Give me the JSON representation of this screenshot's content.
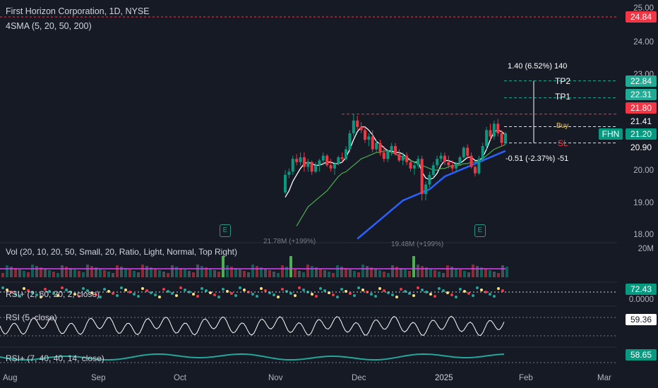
{
  "header": {
    "title": "First Horizon Corporation, 1D, NYSE",
    "indicator": "4SMA (5, 20, 50, 200)"
  },
  "price_axis": [
    {
      "value": 25.0,
      "label": "25.00"
    },
    {
      "value": 24.0,
      "label": "24.00"
    },
    {
      "value": 23.0,
      "label": "23.00"
    },
    {
      "value": 20.0,
      "label": "20.00"
    },
    {
      "value": 19.0,
      "label": "19.00"
    },
    {
      "value": 18.0,
      "label": "18.00"
    }
  ],
  "price_tags": [
    {
      "value": 24.84,
      "label": "24.84",
      "color": "#f23645"
    },
    {
      "value": 22.84,
      "label": "22.84",
      "color": "#22ab94"
    },
    {
      "value": 22.31,
      "label": "22.31",
      "color": "#22ab94"
    },
    {
      "value": 21.8,
      "label": "21.80",
      "color": "#f23645"
    },
    {
      "value": 21.41,
      "label": "21.41",
      "color": "#161a25"
    },
    {
      "value": 21.2,
      "label": "21.20",
      "color": "#089981"
    },
    {
      "value": 20.9,
      "label": "20.90",
      "color": "#161a25"
    }
  ],
  "symbol_tag": "FHN",
  "levels": {
    "tp2": "TP2",
    "tp1": "TP1",
    "buy": "Buy",
    "sl": "SL",
    "upside": "1.40 (6.52%) 140",
    "downside": "-0.51 (-2.37%) -51"
  },
  "volume_labels": {
    "nov": "21.78M (+199%)",
    "dec": "19.48M (+199%)"
  },
  "earnings_marker": "E",
  "panes": {
    "vol": {
      "title": "Vol (20, 10, 20, 50, Small, 20, Ratio, Light, Normal, Top Right)",
      "axis": "20M",
      "axis2": "0.0000"
    },
    "rsi1": {
      "title": "RSI+ (2, 60, 20, 2, close)",
      "value": "72.43"
    },
    "rsi2": {
      "title": "RSI (5, close)",
      "value": "59.36"
    },
    "rsi3": {
      "title": "RSI+ (7, 40, 40, 14, close)",
      "value": "58.65"
    }
  },
  "time_axis": [
    "Aug",
    "Sep",
    "Oct",
    "Nov",
    "Dec",
    "2025",
    "Feb",
    "Mar"
  ],
  "colors": {
    "up": "#089981",
    "down": "#f23645",
    "sma5": "#ffffff",
    "sma20": "#4caf50",
    "sma50": "#2962ff",
    "bg": "#161a25"
  },
  "chart_data": {
    "type": "candlestick",
    "title": "First Horizon Corporation, 1D, NYSE",
    "ylim": [
      17.85,
      25.25
    ],
    "candles_ohlc": [
      [
        19.35,
        20.05,
        19.3,
        19.9
      ],
      [
        19.9,
        20.1,
        19.8,
        20.0
      ],
      [
        20.0,
        20.5,
        19.9,
        20.4
      ],
      [
        20.4,
        20.55,
        20.2,
        20.3
      ],
      [
        20.3,
        20.6,
        20.2,
        20.45
      ],
      [
        20.45,
        20.6,
        20.0,
        20.15
      ],
      [
        20.15,
        20.4,
        20.0,
        20.3
      ],
      [
        20.3,
        20.35,
        19.9,
        20.0
      ],
      [
        20.0,
        20.3,
        19.95,
        20.2
      ],
      [
        20.2,
        20.4,
        20.0,
        20.35
      ],
      [
        20.35,
        20.6,
        20.2,
        20.5
      ],
      [
        20.5,
        20.55,
        20.15,
        20.2
      ],
      [
        20.2,
        20.4,
        20.0,
        20.1
      ],
      [
        20.1,
        20.3,
        19.9,
        20.25
      ],
      [
        20.25,
        20.5,
        20.2,
        20.45
      ],
      [
        20.45,
        20.6,
        20.3,
        20.4
      ],
      [
        20.4,
        20.8,
        20.35,
        20.7
      ],
      [
        20.7,
        21.3,
        20.6,
        21.2
      ],
      [
        21.2,
        21.8,
        21.1,
        21.6
      ],
      [
        21.6,
        21.75,
        21.3,
        21.4
      ],
      [
        21.4,
        21.55,
        21.2,
        21.3
      ],
      [
        21.3,
        21.4,
        20.9,
        21.0
      ],
      [
        21.0,
        21.2,
        20.8,
        21.1
      ],
      [
        21.1,
        21.3,
        20.6,
        20.7
      ],
      [
        20.7,
        21.0,
        20.6,
        20.9
      ],
      [
        20.9,
        21.0,
        20.5,
        20.6
      ],
      [
        20.6,
        20.8,
        20.3,
        20.4
      ],
      [
        20.4,
        20.7,
        20.3,
        20.65
      ],
      [
        20.65,
        20.9,
        20.5,
        20.8
      ],
      [
        20.8,
        20.9,
        20.5,
        20.55
      ],
      [
        20.55,
        20.7,
        20.3,
        20.35
      ],
      [
        20.35,
        20.6,
        20.2,
        20.5
      ],
      [
        20.5,
        20.6,
        20.2,
        20.3
      ],
      [
        20.3,
        20.4,
        20.0,
        20.1
      ],
      [
        20.1,
        20.3,
        19.9,
        20.2
      ],
      [
        20.2,
        20.5,
        20.1,
        20.4
      ],
      [
        20.4,
        20.5,
        19.1,
        19.3
      ],
      [
        19.3,
        19.7,
        19.1,
        19.6
      ],
      [
        19.6,
        20.0,
        19.5,
        19.9
      ],
      [
        19.9,
        20.3,
        19.8,
        20.2
      ],
      [
        20.2,
        20.5,
        20.1,
        20.4
      ],
      [
        20.4,
        20.6,
        20.3,
        20.5
      ],
      [
        20.5,
        20.6,
        20.2,
        20.3
      ],
      [
        20.3,
        20.5,
        20.1,
        20.2
      ],
      [
        20.2,
        20.35,
        20.0,
        20.1
      ],
      [
        20.1,
        20.3,
        20.0,
        20.25
      ],
      [
        20.25,
        20.5,
        20.2,
        20.45
      ],
      [
        20.45,
        20.8,
        20.4,
        20.75
      ],
      [
        20.75,
        20.85,
        20.4,
        20.5
      ],
      [
        20.5,
        20.6,
        20.1,
        20.15
      ],
      [
        20.15,
        20.2,
        19.85,
        19.95
      ],
      [
        19.95,
        20.5,
        19.9,
        20.4
      ],
      [
        20.4,
        20.9,
        20.3,
        20.8
      ],
      [
        20.8,
        21.4,
        20.7,
        21.3
      ],
      [
        21.3,
        21.5,
        21.0,
        21.1
      ],
      [
        21.1,
        21.6,
        21.0,
        21.5
      ],
      [
        21.5,
        21.65,
        21.1,
        21.2
      ],
      [
        21.2,
        21.3,
        20.8,
        20.9
      ],
      [
        20.9,
        21.25,
        20.85,
        21.2
      ]
    ],
    "series": [
      {
        "name": "SMA 5",
        "values": [
          19.2,
          19.4,
          19.7,
          19.9,
          20.1,
          20.25,
          20.3,
          20.25,
          20.2,
          20.2,
          20.25,
          20.3,
          20.3,
          20.25,
          20.25,
          20.3,
          20.45,
          20.7,
          21.0,
          21.25,
          21.4,
          21.4,
          21.3,
          21.15,
          20.95,
          20.85,
          20.75,
          20.65,
          20.65,
          20.6,
          20.6,
          20.55,
          20.45,
          20.35,
          20.3,
          20.3,
          20.0,
          19.8,
          19.75,
          19.8,
          19.95,
          20.2,
          20.35,
          20.35,
          20.3,
          20.25,
          20.25,
          20.35,
          20.45,
          20.45,
          20.35,
          20.35,
          20.45,
          20.7,
          21.0,
          21.25,
          21.3,
          21.25,
          21.15
        ]
      },
      {
        "name": "SMA 20",
        "values": [
          null,
          null,
          null,
          18.3,
          18.5,
          18.7,
          18.9,
          19.0,
          19.1,
          19.2,
          19.3,
          19.4,
          19.55,
          19.7,
          19.85,
          19.95,
          20.0,
          20.1,
          20.2,
          20.3,
          20.4,
          20.45,
          20.5,
          20.55,
          20.6,
          20.6,
          20.65,
          20.65,
          20.6,
          20.55,
          20.5,
          20.45,
          20.4,
          20.35,
          20.3,
          20.25,
          20.2,
          20.15,
          20.1,
          20.05,
          20.05,
          20.1,
          20.1,
          20.15,
          20.2,
          20.2,
          20.2,
          20.25,
          20.25,
          20.3,
          20.3,
          20.35,
          20.4,
          20.5,
          20.6,
          20.7,
          20.75,
          20.8,
          20.85
        ]
      },
      {
        "name": "SMA 50",
        "values": [
          null,
          null,
          null,
          null,
          null,
          null,
          null,
          null,
          null,
          null,
          null,
          null,
          null,
          null,
          null,
          null,
          null,
          null,
          null,
          17.9,
          18.0,
          18.1,
          18.2,
          18.3,
          18.4,
          18.5,
          18.6,
          18.7,
          18.8,
          18.9,
          19.0,
          19.1,
          19.15,
          19.2,
          19.25,
          19.3,
          19.35,
          19.4,
          19.45,
          19.55,
          19.65,
          19.75,
          19.85,
          19.9,
          19.95,
          20.0,
          20.05,
          20.1,
          20.15,
          20.2,
          20.25,
          20.3,
          20.35,
          20.4,
          20.45,
          20.5,
          20.55,
          20.6,
          20.65
        ]
      }
    ]
  }
}
